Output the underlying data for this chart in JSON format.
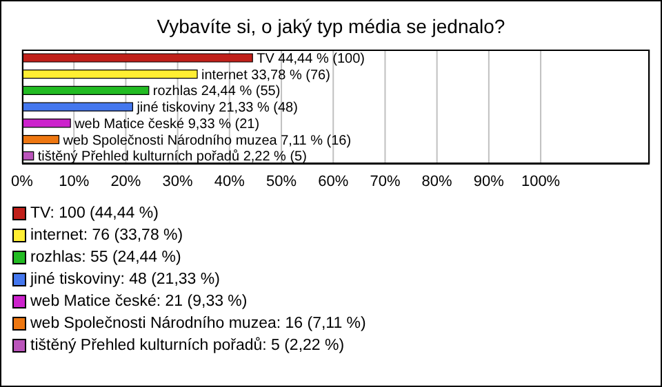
{
  "chart_data": {
    "type": "bar",
    "orientation": "horizontal",
    "title": "Vybavíte si, o jaký typ média se jednalo?",
    "categories": [
      null,
      null,
      null,
      null,
      null,
      null,
      null
    ],
    "values": [
      44.44,
      33.78,
      24.44,
      21.33,
      9.33,
      7.11,
      2.22
    ],
    "colors": [
      "#c0201a",
      "#ffee33",
      "#22bb22",
      "#4477ee",
      "#cc22cc",
      "#ee7711",
      "#bb55bb"
    ],
    "value_labels": [
      "TV 44,44 % (100)",
      "internet 33,78 % (76)",
      "rozhlas 24,44 % (55)",
      "jiné tiskoviny 21,33 % (48)",
      "web Matice české 9,33 % (21)",
      "web Společnosti Národního muzea 7,11 % (16)",
      "tištěný Přehled kulturních pořadů 2,22 % (5)"
    ],
    "xlim": [
      0,
      121
    ],
    "xticks": [
      {
        "value": 0,
        "label": "0%"
      },
      {
        "value": 10,
        "label": "10%"
      },
      {
        "value": 20,
        "label": "20%"
      },
      {
        "value": 30,
        "label": "30%"
      },
      {
        "value": 40,
        "label": "40%"
      },
      {
        "value": 50,
        "label": "50%"
      },
      {
        "value": 60,
        "label": "60%"
      },
      {
        "value": 70,
        "label": "70%"
      },
      {
        "value": 80,
        "label": "80%"
      },
      {
        "value": 90,
        "label": "90%"
      },
      {
        "value": 100,
        "label": "100%"
      }
    ],
    "tick_labels": "x",
    "grid": "x",
    "annotations": [
      "TV: 100 (44,44 %)",
      "internet: 76 (33,78 %)",
      "rozhlas: 55 (24,44 %)",
      "jiné tiskoviny: 48 (21,33 %)",
      "web Matice české: 21 (9,33 %)",
      "web Společnosti Národního muzea: 16 (7,11 %)",
      "tištěný Přehled kulturních pořadů: 5 (2,22 %)"
    ]
  }
}
